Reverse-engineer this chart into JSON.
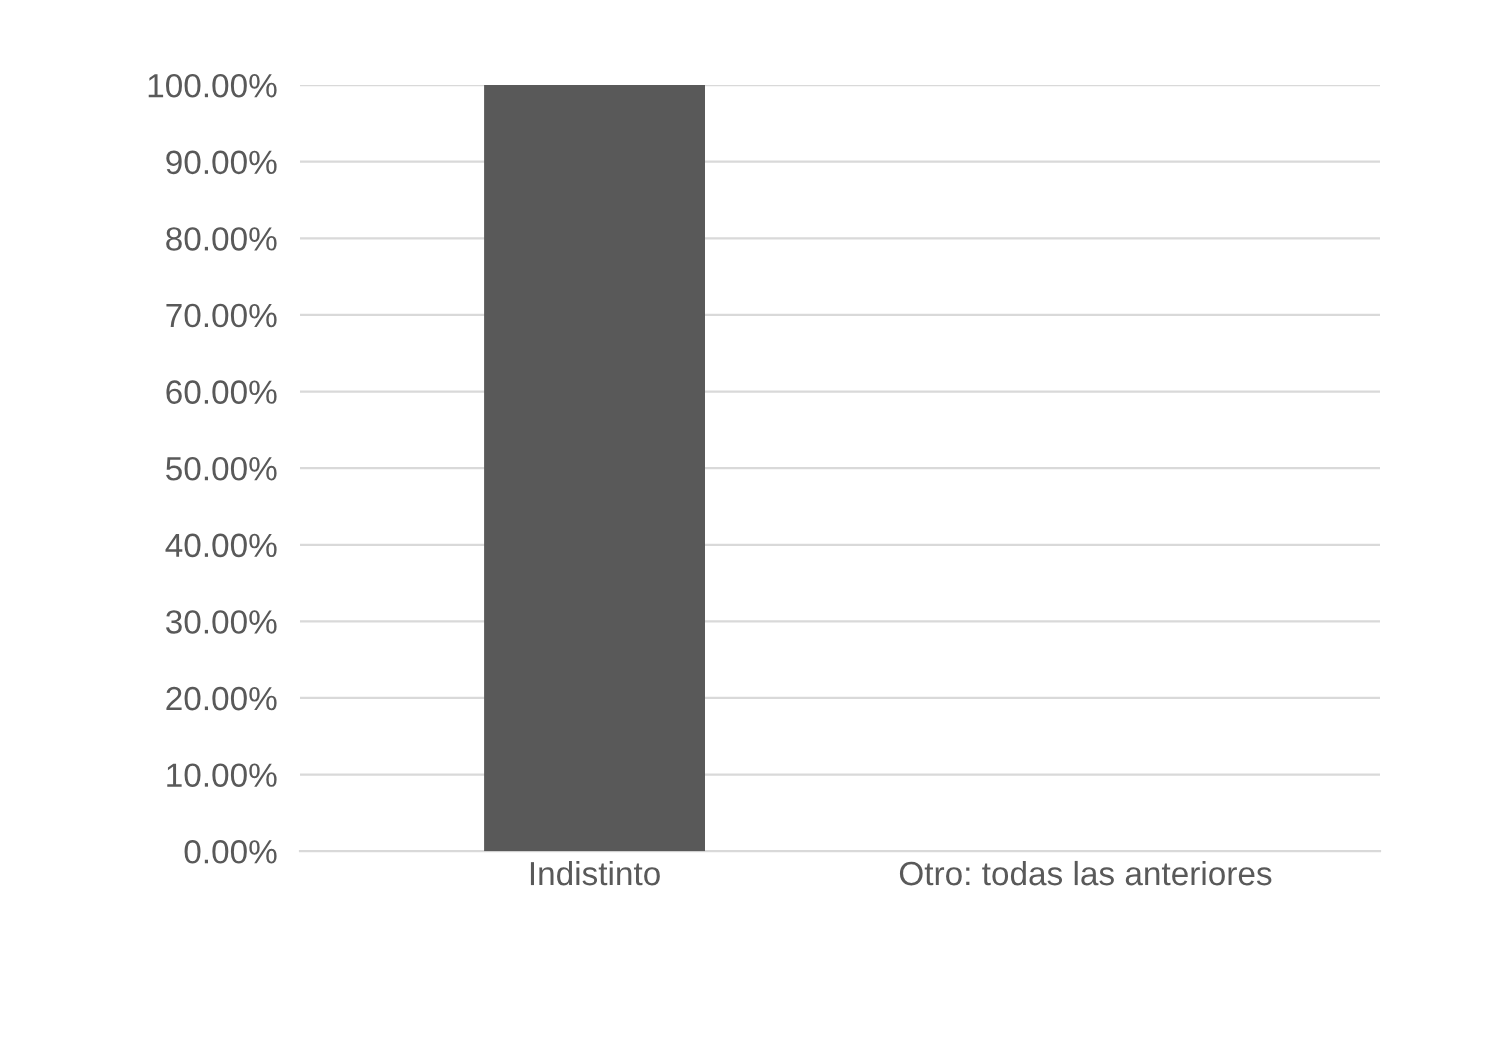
{
  "chart_data": {
    "type": "bar",
    "categories": [
      "Indistinto",
      "Otro: todas las anteriores"
    ],
    "values": [
      100,
      0
    ],
    "color": "#595959",
    "ylim": [
      0,
      100
    ],
    "yticks": [
      {
        "value": 0,
        "label": "0.00%"
      },
      {
        "value": 10,
        "label": "10.00%"
      },
      {
        "value": 20,
        "label": "20.00%"
      },
      {
        "value": 30,
        "label": "30.00%"
      },
      {
        "value": 40,
        "label": "40.00%"
      },
      {
        "value": 50,
        "label": "50.00%"
      },
      {
        "value": 60,
        "label": "60.00%"
      },
      {
        "value": 70,
        "label": "70.00%"
      },
      {
        "value": 80,
        "label": "80.00%"
      },
      {
        "value": 90,
        "label": "90.00%"
      },
      {
        "value": 100,
        "label": "100.00%"
      }
    ],
    "grid": "y",
    "legend": false
  }
}
